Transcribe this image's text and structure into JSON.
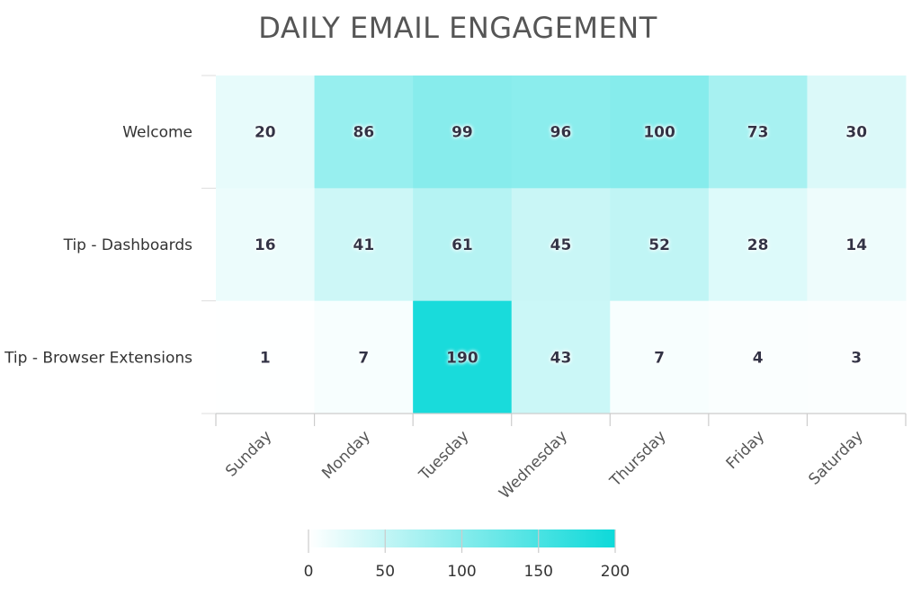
{
  "chart_data": {
    "type": "heatmap",
    "title": "DAILY EMAIL ENGAGEMENT",
    "x_categories": [
      "Sunday",
      "Monday",
      "Tuesday",
      "Wednesday",
      "Thursday",
      "Friday",
      "Saturday"
    ],
    "y_categories": [
      "Welcome",
      "Tip - Dashboards",
      "Tip - Browser Extensions"
    ],
    "values": [
      [
        20,
        86,
        99,
        96,
        100,
        73,
        30
      ],
      [
        16,
        41,
        61,
        45,
        52,
        28,
        14
      ],
      [
        1,
        7,
        190,
        43,
        7,
        4,
        3
      ]
    ],
    "color_min": "#ffffff",
    "color_max": "#0dd9d9",
    "color_range": [
      0,
      200
    ],
    "colorbar_ticks": [
      "0",
      "50",
      "100",
      "150",
      "200"
    ],
    "legend_position": "bottom"
  }
}
